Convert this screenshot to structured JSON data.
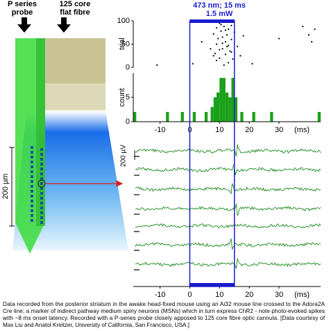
{
  "diagram": {
    "probe_label": [
      "P series",
      "probe"
    ],
    "fibre_label": [
      "125 core",
      "flat fibre"
    ],
    "scale_label": "200 µm"
  },
  "stimulus": {
    "labels": [
      "473 nm; 15 ms",
      "1.5 mW"
    ],
    "range": [
      0,
      15
    ]
  },
  "chart_data": [
    {
      "type": "scatter",
      "ylabel": "trial",
      "x": [
        -11,
        1,
        4,
        7,
        8,
        8.5,
        9,
        9,
        9.5,
        10,
        10,
        10.5,
        11,
        11,
        11.5,
        12,
        12,
        12.5,
        13,
        13,
        13.5,
        14,
        14,
        14.5,
        15,
        16,
        17,
        18,
        10,
        11,
        12,
        9,
        13,
        10.5,
        21,
        30,
        38,
        40,
        41,
        42,
        8,
        11.5,
        12.5,
        9.5,
        14
      ],
      "y": [
        5,
        8,
        55,
        40,
        72,
        30,
        85,
        50,
        62,
        95,
        20,
        78,
        40,
        65,
        88,
        55,
        28,
        70,
        47,
        82,
        35,
        60,
        90,
        18,
        75,
        45,
        25,
        68,
        38,
        52,
        80,
        15,
        10,
        92,
        8,
        62,
        88,
        70,
        55,
        82,
        25,
        5,
        45,
        98,
        33
      ],
      "color": "#000000",
      "xlim": [
        -19,
        44
      ],
      "ylim": [
        0,
        100
      ],
      "yticks": [
        0,
        50,
        100
      ]
    },
    {
      "type": "histogram",
      "ylabel": "count",
      "x_unit": "(ms)",
      "color": "#1aa01a",
      "bins": [
        -19,
        -18,
        -17,
        -16,
        -15,
        -14,
        -13,
        -12,
        -11,
        -10,
        -9,
        -8,
        -7,
        -6,
        -5,
        -4,
        -3,
        -2,
        -1,
        0,
        1,
        2,
        3,
        4,
        5,
        6,
        7,
        8,
        9,
        10,
        11,
        12,
        13,
        14,
        15,
        16,
        17,
        18,
        19,
        20,
        21,
        22,
        23,
        24,
        25,
        26,
        27,
        28,
        29,
        30,
        31,
        32,
        33,
        34,
        35,
        36,
        37,
        38,
        39,
        40,
        41,
        42,
        43,
        44
      ],
      "counts": [
        2,
        0,
        0,
        0,
        0,
        0,
        0,
        0,
        0,
        0,
        0,
        2,
        0,
        0,
        0,
        0,
        2,
        0,
        0,
        0,
        2,
        0,
        0,
        0,
        2,
        0,
        3,
        5,
        6,
        9,
        9,
        6,
        5,
        9,
        5,
        0,
        2,
        0,
        0,
        0,
        2,
        0,
        0,
        0,
        0,
        0,
        2,
        0,
        0,
        0,
        0,
        0,
        0,
        0,
        0,
        0,
        0,
        0,
        0,
        0,
        0,
        0,
        2
      ],
      "xlim": [
        -19,
        44
      ],
      "ylim": [
        0,
        10
      ],
      "yticks": [
        0,
        5
      ],
      "xticks": [
        -10,
        0,
        10,
        20,
        30
      ]
    },
    {
      "type": "traces",
      "scale_label": "200 µV",
      "x_unit": "(ms)",
      "color": "#1a8a1a",
      "xlim": [
        -19,
        44
      ],
      "xticks": [
        -10,
        0,
        10,
        20,
        30
      ]
    }
  ],
  "caption": [
    "Data recorded from the posterior striatum in the awake head-fixed mouse using an Ai32 mouse line crossed to the Adora2A",
    "Cre line; a marker of indirect pathway medium spiny neurons (MSNs) which in turn express ChR2 - note photo-evoked spikes",
    "with ~8 ms onset latency. Recorded with a P-series probe closely apposed to 125 core fibre optic cannula. [Data courtesy of",
    "Max Liu and Anatol Kreitzer, University of California, San Francisco, USA.]"
  ]
}
